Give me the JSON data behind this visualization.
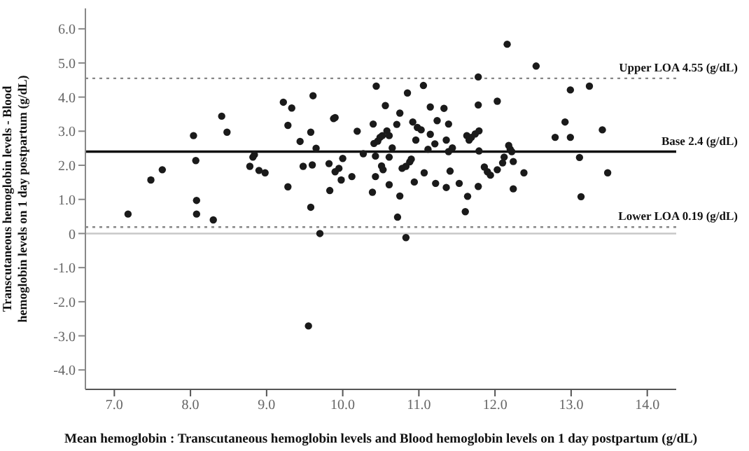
{
  "chart_data": {
    "type": "scatter",
    "xlabel": "Mean hemoglobin : Transcutaneous hemoglobin levels and Blood hemoglobin levels on 1 day postpartum (g/dL)",
    "ylabel": "Transcutaneous hemoglobin levels - Blood hemoglobin levels on 1 day postpartum (g/dL)",
    "xlim": [
      6.62,
      14.38
    ],
    "xticks": [
      {
        "value": 7,
        "label": "7.0"
      },
      {
        "value": 8,
        "label": "8.0"
      },
      {
        "value": 9,
        "label": "9.0"
      },
      {
        "value": 10,
        "label": "10.0"
      },
      {
        "value": 11,
        "label": "11.0"
      },
      {
        "value": 12,
        "label": "12.0"
      },
      {
        "value": 13,
        "label": "13.0"
      },
      {
        "value": 14,
        "label": "14.0"
      }
    ],
    "ylim": [
      -4.57,
      6.6
    ],
    "yticks": [
      {
        "value": -4,
        "label": "-4.0"
      },
      {
        "value": -3,
        "label": "-3.0"
      },
      {
        "value": -2,
        "label": "-2.0"
      },
      {
        "value": -1,
        "label": "-1.0"
      },
      {
        "value": 0,
        "label": "0"
      },
      {
        "value": 1,
        "label": "1.0"
      },
      {
        "value": 2,
        "label": "2.0"
      },
      {
        "value": 3,
        "label": "3.0"
      },
      {
        "value": 4,
        "label": "4.0"
      },
      {
        "value": 5,
        "label": "5.0"
      },
      {
        "value": 6,
        "label": "6.0"
      }
    ],
    "grid": false,
    "legend": false,
    "marker": "circle",
    "ref_lines": [
      {
        "axis": "y",
        "value": 4.55,
        "label": "Upper LOA 4.55 (g/dL)",
        "color": "#888888",
        "line_style": "dotted"
      },
      {
        "axis": "y",
        "value": 2.4,
        "label": "Base 2.4 (g/dL)",
        "color": "#111111",
        "line_style": "solid"
      },
      {
        "axis": "y",
        "value": 0.19,
        "label": "Lower LOA 0.19 (g/dL)",
        "color": "#888888",
        "line_style": "dotted"
      },
      {
        "axis": "y",
        "value": 0,
        "label": null,
        "color": "#c8c8c8",
        "line_style": "solid"
      }
    ],
    "series": [
      {
        "color": "#1a1a1a",
        "x": [
          7.18,
          7.48,
          7.63,
          8.04,
          8.07,
          8.08,
          8.08,
          8.3,
          8.41,
          8.48,
          8.78,
          8.82,
          8.84,
          8.9,
          8.98,
          9.22,
          9.28,
          9.28,
          9.33,
          9.44,
          9.48,
          9.58,
          9.58,
          9.6,
          9.61,
          9.65,
          9.7,
          9.82,
          9.83,
          9.88,
          9.9,
          9.9,
          9.95,
          9.98,
          10.0,
          10.12,
          10.19,
          10.27,
          10.39,
          10.4,
          10.41,
          10.43,
          10.43,
          10.44,
          10.46,
          10.49,
          10.51,
          10.52,
          10.53,
          10.56,
          10.58,
          10.61,
          10.61,
          10.61,
          10.65,
          10.72,
          10.75,
          10.71,
          10.75,
          10.85,
          10.83,
          10.78,
          10.83,
          10.88,
          10.9,
          11.06,
          11.15,
          11.33,
          10.92,
          10.98,
          11.03,
          11.15,
          11.24,
          11.39,
          10.96,
          11.21,
          11.36,
          11.12,
          11.39,
          11.44,
          11.07,
          10.94,
          11.22,
          11.36,
          11.41,
          11.53,
          11.64,
          11.61,
          11.78,
          11.78,
          12.03,
          12.16,
          12.54,
          11.63,
          11.69,
          11.74,
          11.79,
          11.66,
          11.79,
          11.86,
          11.9,
          11.94,
          12.03,
          12.1,
          12.12,
          12.18,
          12.2,
          12.22,
          12.24,
          12.38,
          11.78,
          12.24,
          12.79,
          12.92,
          12.99,
          12.99,
          13.24,
          13.11,
          13.13,
          13.41,
          13.48,
          9.55
        ],
        "values": [
          0.57,
          1.57,
          1.87,
          2.87,
          2.14,
          0.97,
          0.57,
          0.4,
          3.44,
          2.97,
          1.97,
          2.24,
          2.31,
          1.85,
          1.78,
          3.85,
          1.37,
          3.17,
          3.68,
          2.7,
          1.97,
          2.97,
          0.77,
          2.01,
          4.04,
          2.5,
          0.0,
          2.05,
          1.26,
          3.37,
          3.4,
          1.81,
          1.91,
          1.57,
          2.2,
          1.67,
          3.0,
          2.34,
          1.21,
          3.21,
          2.64,
          1.67,
          2.27,
          4.32,
          2.71,
          2.82,
          1.98,
          2.87,
          1.87,
          3.75,
          3.01,
          2.87,
          2.24,
          1.43,
          2.51,
          0.48,
          1.1,
          3.2,
          3.53,
          4.12,
          -0.12,
          1.91,
          1.97,
          2.1,
          2.18,
          4.34,
          3.71,
          3.67,
          3.27,
          3.11,
          3.04,
          2.91,
          3.31,
          3.21,
          2.74,
          2.63,
          2.74,
          2.47,
          2.4,
          2.51,
          1.78,
          1.51,
          1.47,
          1.35,
          1.83,
          1.47,
          1.09,
          0.64,
          4.59,
          3.77,
          3.88,
          5.55,
          4.91,
          2.87,
          2.82,
          2.92,
          3.01,
          2.74,
          2.42,
          1.95,
          1.81,
          1.71,
          1.87,
          2.07,
          2.24,
          2.58,
          2.47,
          2.4,
          2.11,
          1.78,
          1.38,
          1.31,
          2.82,
          3.27,
          2.82,
          4.21,
          4.32,
          2.23,
          1.08,
          3.04,
          1.78,
          -2.71
        ]
      }
    ]
  }
}
